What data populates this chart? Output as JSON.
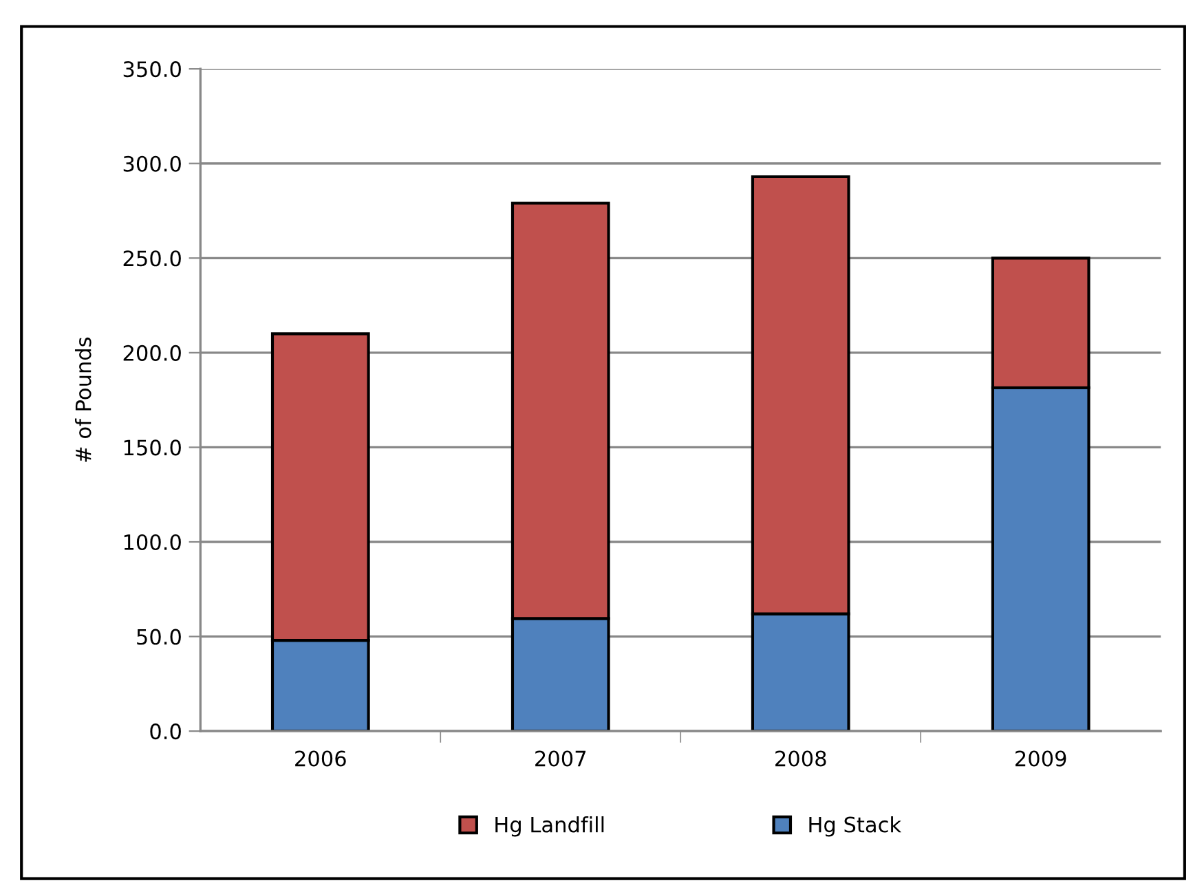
{
  "chart_data": {
    "type": "bar",
    "stacked": true,
    "ylabel": "# of Pounds",
    "categories": [
      "2006",
      "2007",
      "2008",
      "2009"
    ],
    "series": [
      {
        "name": "Hg Stack",
        "color": "#4f81bd",
        "values": [
          48,
          59.5,
          62,
          181.5
        ]
      },
      {
        "name": "Hg Landfill",
        "color": "#c0504d",
        "values": [
          162,
          219.5,
          231,
          68.5
        ]
      }
    ],
    "ylim": [
      0,
      350
    ],
    "yticks": [
      {
        "value": 0,
        "label": "0.0"
      },
      {
        "value": 50,
        "label": "50.0"
      },
      {
        "value": 100,
        "label": "100.0"
      },
      {
        "value": 150,
        "label": "150.0"
      },
      {
        "value": 200,
        "label": "200.0"
      },
      {
        "value": 250,
        "label": "250.0"
      },
      {
        "value": 300,
        "label": "300.0"
      },
      {
        "value": 350,
        "label": "350.0"
      }
    ],
    "grid": "y",
    "legend": "bottom"
  }
}
